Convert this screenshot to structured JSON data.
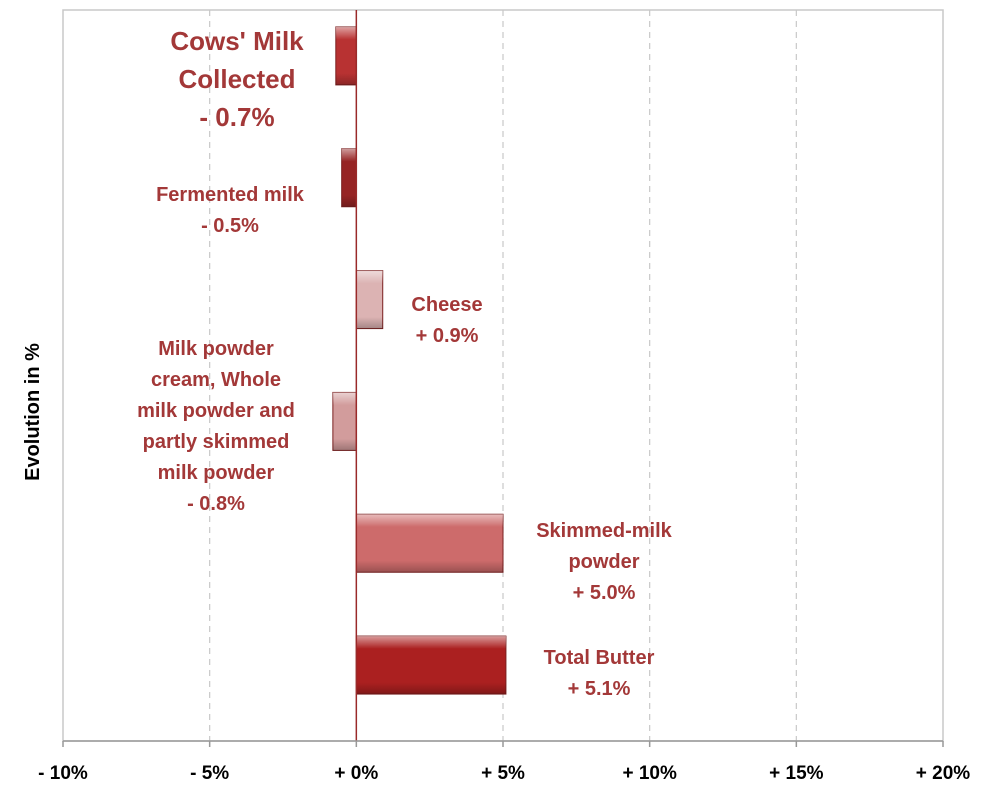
{
  "chart_data": {
    "type": "bar",
    "orientation": "horizontal",
    "ylabel": "Evolution in %",
    "xlim": [
      -10,
      20
    ],
    "xticks": [
      -10,
      -5,
      0,
      5,
      10,
      15,
      20
    ],
    "xtick_labels": [
      "- 10%",
      "- 5%",
      "+ 0%",
      "+ 5%",
      "+ 10%",
      "+ 15%",
      "+ 20%"
    ],
    "grid": true,
    "categories": [
      "Cows' Milk Collected",
      "Fermented milk",
      "Cheese",
      "Milk powder cream, Whole milk powder and partly skimmed milk powder",
      "Skimmed-milk powder",
      "Total Butter"
    ],
    "values": [
      -0.7,
      -0.5,
      0.9,
      -0.8,
      5.0,
      5.1
    ],
    "data_labels": [
      [
        "Cows' Milk",
        "Collected",
        "- 0.7%"
      ],
      [
        "Fermented milk",
        "- 0.5%"
      ],
      [
        "Cheese",
        "+ 0.9%"
      ],
      [
        "Milk powder",
        "cream, Whole",
        "milk powder and",
        "partly skimmed",
        "milk powder",
        "- 0.8%"
      ],
      [
        "Skimmed-milk",
        "powder",
        "+ 5.0%"
      ],
      [
        "Total Butter",
        "+ 5.1%"
      ]
    ],
    "colors": [
      "#b83232",
      "#962424",
      "#dcb3b3",
      "#d29c9c",
      "#cd6b6b",
      "#ab2020"
    ]
  }
}
